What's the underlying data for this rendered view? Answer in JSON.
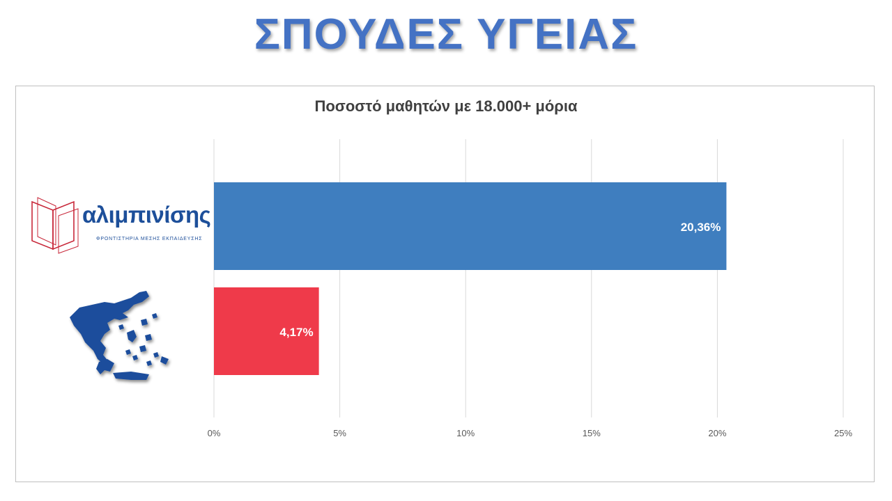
{
  "page": {
    "title": "ΣΠΟΥΔΕΣ ΥΓΕΙΑΣ"
  },
  "logo": {
    "name": "αλιμπινίσης",
    "subtitle": "ΦΡΟΝΤΙΣΤΗΡΙΑ ΜΕΣΗΣ ΕΚΠΑΙΔΕΥΣΗΣ"
  },
  "chart_data": {
    "type": "bar",
    "orientation": "horizontal",
    "title": "Ποσοστό μαθητών με 18.000+ μόρια",
    "xlabel": "",
    "ylabel": "",
    "categories": [
      "αλιμπινίσης",
      "greece-map"
    ],
    "values": [
      20.36,
      4.17
    ],
    "value_labels": [
      "20,36%",
      "4,17%"
    ],
    "bar_colors": [
      "#3f7ebf",
      "#ef3a4a"
    ],
    "xlim": [
      0,
      25
    ],
    "xticks": [
      0,
      5,
      10,
      15,
      20,
      25
    ],
    "xtick_labels": [
      "0%",
      "5%",
      "10%",
      "15%",
      "20%",
      "25%"
    ],
    "grid": "vertical",
    "legend": "none"
  }
}
